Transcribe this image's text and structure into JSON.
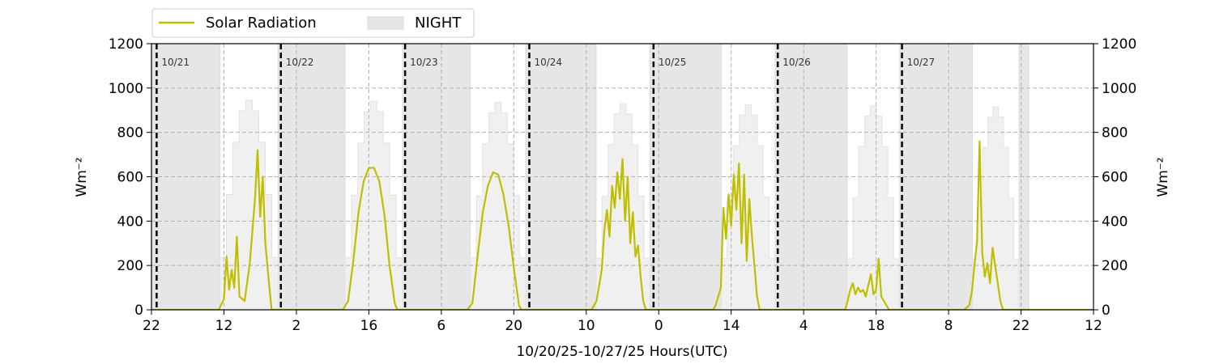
{
  "chart_data": {
    "type": "line",
    "xlabel": "10/20/25-10/27/25  Hours(UTC)",
    "ylabel_left": "Wm⁻²",
    "ylabel_right": "Wm⁻²",
    "ylim": [
      0,
      1200
    ],
    "y_ticks": [
      0,
      200,
      400,
      600,
      800,
      1000,
      1200
    ],
    "x_range_hours": [
      0,
      182
    ],
    "x_ticks": [
      {
        "hour": 0,
        "label": "22"
      },
      {
        "hour": 14,
        "label": "12"
      },
      {
        "hour": 28,
        "label": "2"
      },
      {
        "hour": 42,
        "label": "16"
      },
      {
        "hour": 56,
        "label": "6"
      },
      {
        "hour": 70,
        "label": "20"
      },
      {
        "hour": 84,
        "label": "10"
      },
      {
        "hour": 98,
        "label": "0"
      },
      {
        "hour": 112,
        "label": "14"
      },
      {
        "hour": 126,
        "label": "4"
      },
      {
        "hour": 140,
        "label": "18"
      },
      {
        "hour": 154,
        "label": "8"
      },
      {
        "hour": 168,
        "label": "22"
      },
      {
        "hour": 182,
        "label": "12"
      }
    ],
    "grid": true,
    "legend": {
      "placement": "top-left-outside",
      "entries": [
        {
          "label": "Solar Radiation",
          "color": "#bfbf00",
          "kind": "line"
        },
        {
          "label": "NIGHT",
          "color": "#e6e6e6",
          "kind": "patch"
        }
      ]
    },
    "day_boundaries": [
      {
        "hour": 1,
        "label": "10/21"
      },
      {
        "hour": 25,
        "label": "10/22"
      },
      {
        "hour": 49,
        "label": "10/23"
      },
      {
        "hour": 73,
        "label": "10/24"
      },
      {
        "hour": 97,
        "label": "10/25"
      },
      {
        "hour": 121,
        "label": "10/26"
      },
      {
        "hour": 145,
        "label": "10/27"
      }
    ],
    "night_periods": [
      [
        0,
        13.2
      ],
      [
        24.5,
        37.4
      ],
      [
        48.5,
        61.6
      ],
      [
        72.3,
        85.9
      ],
      [
        96.3,
        110.1
      ],
      [
        120.5,
        134.4
      ],
      [
        144.5,
        158.6
      ],
      [
        167.6,
        169.5
      ]
    ],
    "clear_sky_envelope_peak": [
      945,
      940,
      935,
      930,
      925,
      920,
      915
    ],
    "series": [
      {
        "name": "Solar Radiation",
        "color": "#bfbf00",
        "points": [
          [
            0,
            0
          ],
          [
            13,
            0
          ],
          [
            14.0,
            50
          ],
          [
            14.5,
            240
          ],
          [
            15.0,
            90
          ],
          [
            15.5,
            180
          ],
          [
            16.0,
            100
          ],
          [
            16.5,
            330
          ],
          [
            17.0,
            60
          ],
          [
            18.0,
            40
          ],
          [
            19.0,
            210
          ],
          [
            20.0,
            500
          ],
          [
            20.5,
            720
          ],
          [
            21.0,
            420
          ],
          [
            21.5,
            600
          ],
          [
            22.0,
            300
          ],
          [
            22.7,
            120
          ],
          [
            23.2,
            0
          ],
          [
            37,
            0
          ],
          [
            38,
            40
          ],
          [
            39,
            220
          ],
          [
            40,
            440
          ],
          [
            41,
            580
          ],
          [
            42,
            640
          ],
          [
            43,
            640
          ],
          [
            44,
            580
          ],
          [
            45,
            430
          ],
          [
            46,
            200
          ],
          [
            47,
            30
          ],
          [
            47.5,
            0
          ],
          [
            61,
            0
          ],
          [
            62,
            30
          ],
          [
            63,
            240
          ],
          [
            64,
            440
          ],
          [
            65,
            560
          ],
          [
            66,
            620
          ],
          [
            67,
            610
          ],
          [
            68,
            520
          ],
          [
            69,
            380
          ],
          [
            70,
            190
          ],
          [
            71,
            20
          ],
          [
            71.5,
            0
          ],
          [
            85,
            0
          ],
          [
            86,
            40
          ],
          [
            87,
            180
          ],
          [
            87.5,
            360
          ],
          [
            88,
            450
          ],
          [
            88.5,
            330
          ],
          [
            89,
            560
          ],
          [
            89.5,
            460
          ],
          [
            90,
            620
          ],
          [
            90.5,
            500
          ],
          [
            91,
            680
          ],
          [
            91.5,
            400
          ],
          [
            92,
            600
          ],
          [
            92.5,
            300
          ],
          [
            93,
            440
          ],
          [
            93.5,
            240
          ],
          [
            94,
            290
          ],
          [
            94.5,
            150
          ],
          [
            95,
            40
          ],
          [
            95.5,
            0
          ],
          [
            108.5,
            0
          ],
          [
            109,
            20
          ],
          [
            110,
            100
          ],
          [
            110.5,
            460
          ],
          [
            111,
            320
          ],
          [
            111.5,
            520
          ],
          [
            112,
            380
          ],
          [
            112.5,
            610
          ],
          [
            113,
            450
          ],
          [
            113.5,
            660
          ],
          [
            114,
            300
          ],
          [
            114.5,
            610
          ],
          [
            115,
            220
          ],
          [
            115.5,
            500
          ],
          [
            116,
            330
          ],
          [
            116.5,
            200
          ],
          [
            117,
            60
          ],
          [
            117.5,
            0
          ],
          [
            134,
            0
          ],
          [
            134.5,
            40
          ],
          [
            135,
            90
          ],
          [
            135.5,
            120
          ],
          [
            136,
            70
          ],
          [
            136.5,
            100
          ],
          [
            137,
            80
          ],
          [
            137.5,
            90
          ],
          [
            138,
            60
          ],
          [
            138.5,
            110
          ],
          [
            139,
            160
          ],
          [
            139.5,
            70
          ],
          [
            140,
            90
          ],
          [
            140.5,
            230
          ],
          [
            141,
            60
          ],
          [
            142,
            20
          ],
          [
            142.5,
            0
          ],
          [
            157,
            0
          ],
          [
            158,
            20
          ],
          [
            158.5,
            80
          ],
          [
            159,
            200
          ],
          [
            159.5,
            310
          ],
          [
            160,
            760
          ],
          [
            160.5,
            260
          ],
          [
            161,
            150
          ],
          [
            161.5,
            210
          ],
          [
            162,
            120
          ],
          [
            162.5,
            280
          ],
          [
            163,
            200
          ],
          [
            163.5,
            120
          ],
          [
            164,
            40
          ],
          [
            164.5,
            0
          ],
          [
            182,
            0
          ]
        ]
      }
    ]
  }
}
